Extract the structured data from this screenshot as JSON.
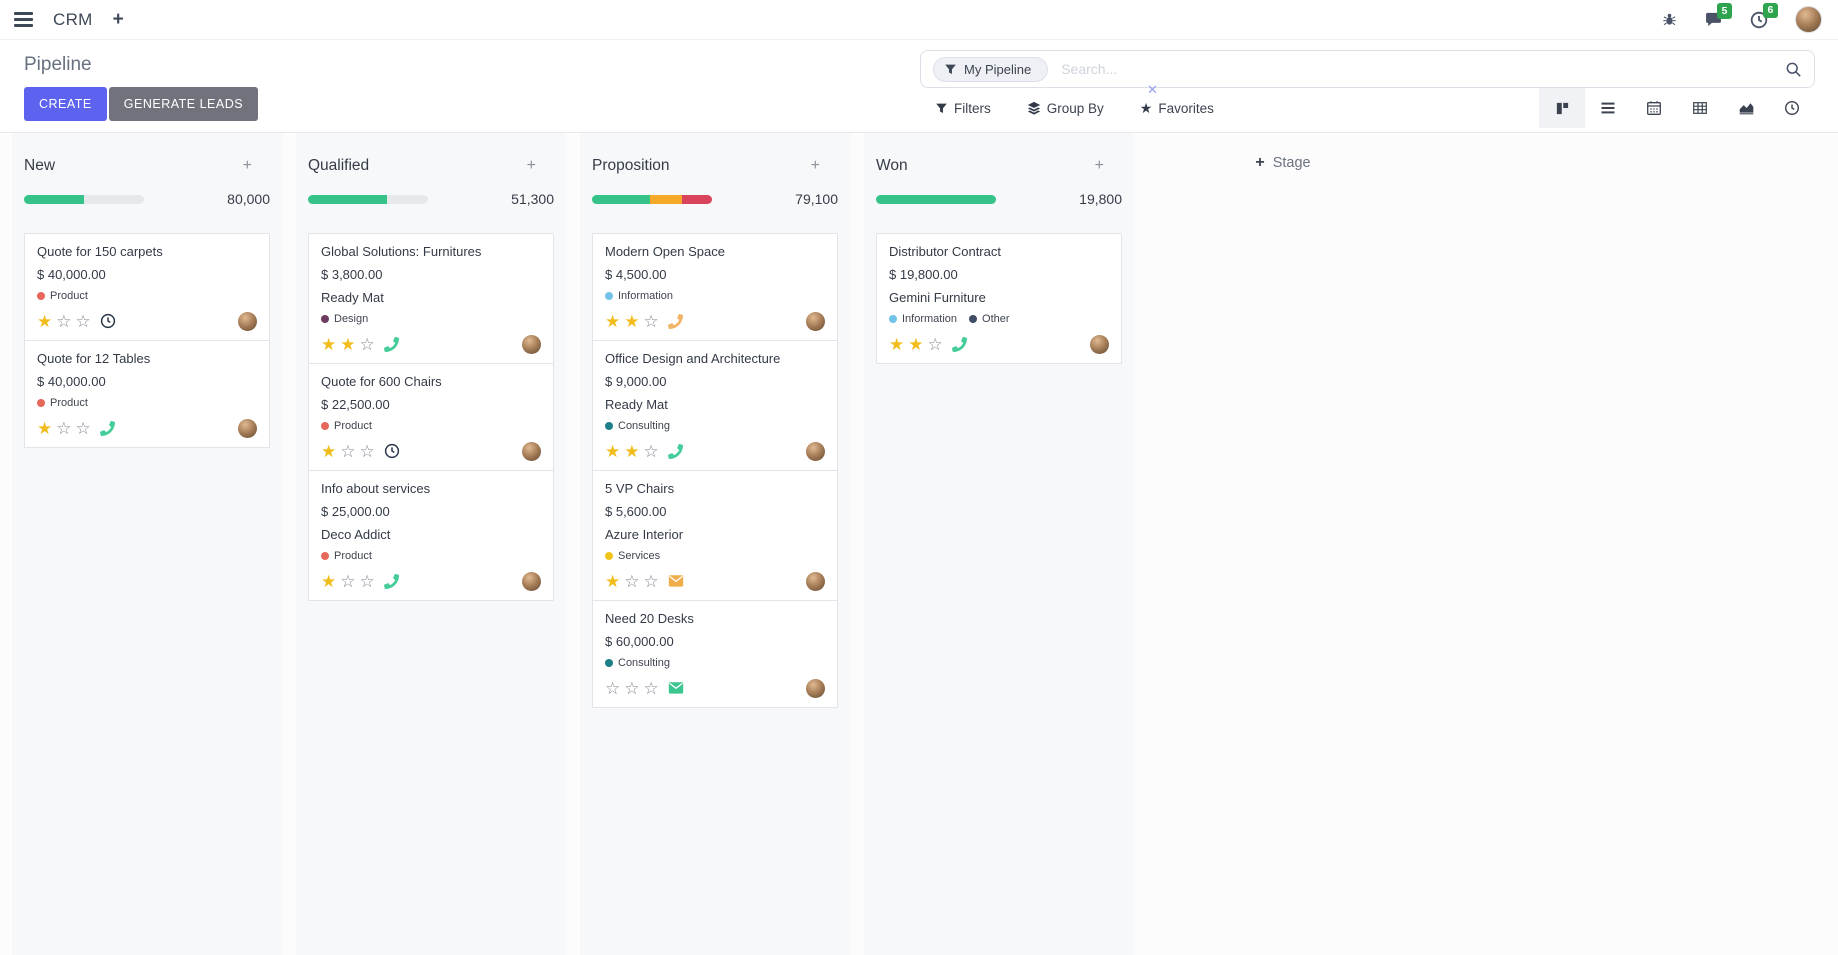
{
  "colors": {
    "accent": "#5d63ee",
    "muted_button": "#70737c",
    "success": "#35c38a",
    "warning": "#f6a829",
    "danger": "#d9435c"
  },
  "topbar": {
    "app_name": "CRM",
    "systray": {
      "bug_icon": "bug-icon",
      "messages_icon": "chat-icon",
      "messages_badge": "5",
      "activities_icon": "clock-icon",
      "activities_badge": "6",
      "user_icon": "avatar"
    }
  },
  "control_panel": {
    "title": "Pipeline",
    "create_label": "CREATE",
    "generate_leads_label": "GENERATE LEADS",
    "search": {
      "facet": "My Pipeline",
      "facet_icon": "funnel-icon",
      "placeholder": "Search...",
      "search_icon": "magnifier-icon"
    },
    "menus": {
      "filters_label": "Filters",
      "group_by_label": "Group By",
      "favorites_label": "Favorites"
    },
    "view_switcher": {
      "views": [
        "kanban",
        "list",
        "calendar",
        "pivot",
        "graph",
        "activity"
      ],
      "active": "kanban"
    }
  },
  "board": {
    "add_stage_label": "Stage",
    "columns": [
      {
        "name": "New",
        "total": "80,000",
        "progress": [
          {
            "color": "#35c38a",
            "pct": 50
          }
        ],
        "cards": [
          {
            "title": "Quote for 150 carpets",
            "amount": "$ 40,000.00",
            "tags": [
              {
                "label": "Product",
                "color": "#e7685a"
              }
            ],
            "stars": 1,
            "activity": {
              "icon": "clock-icon",
              "color": "#2b374a"
            }
          },
          {
            "title": "Quote for 12 Tables",
            "amount": "$ 40,000.00",
            "tags": [
              {
                "label": "Product",
                "color": "#e7685a"
              }
            ],
            "stars": 1,
            "activity": {
              "icon": "phone-icon",
              "color": "#44cd99"
            }
          }
        ]
      },
      {
        "name": "Qualified",
        "total": "51,300",
        "progress": [
          {
            "color": "#35c38a",
            "pct": 66
          }
        ],
        "cards": [
          {
            "title": "Global Solutions: Furnitures",
            "amount": "$ 3,800.00",
            "partner": "Ready Mat",
            "tags": [
              {
                "label": "Design",
                "color": "#6e3c60"
              }
            ],
            "stars": 2,
            "activity": {
              "icon": "phone-icon",
              "color": "#44cd99"
            }
          },
          {
            "title": "Quote for 600 Chairs",
            "amount": "$ 22,500.00",
            "tags": [
              {
                "label": "Product",
                "color": "#e7685a"
              }
            ],
            "stars": 1,
            "activity": {
              "icon": "clock-icon",
              "color": "#2b374a"
            }
          },
          {
            "title": "Info about services",
            "amount": "$ 25,000.00",
            "partner": "Deco Addict",
            "tags": [
              {
                "label": "Product",
                "color": "#e7685a"
              }
            ],
            "stars": 1,
            "activity": {
              "icon": "phone-icon",
              "color": "#44cd99"
            }
          }
        ]
      },
      {
        "name": "Proposition",
        "total": "79,100",
        "progress": [
          {
            "color": "#35c38a",
            "pct": 48
          },
          {
            "color": "#f6a829",
            "pct": 27
          },
          {
            "color": "#d9435c",
            "pct": 25
          }
        ],
        "cards": [
          {
            "title": "Modern Open Space",
            "amount": "$ 4,500.00",
            "tags": [
              {
                "label": "Information",
                "color": "#72c2e9"
              }
            ],
            "stars": 2,
            "activity": {
              "icon": "phone-icon",
              "color": "#f2b468"
            }
          },
          {
            "title": "Office Design and Architecture",
            "amount": "$ 9,000.00",
            "partner": "Ready Mat",
            "tags": [
              {
                "label": "Consulting",
                "color": "#1d7f89"
              }
            ],
            "stars": 2,
            "activity": {
              "icon": "phone-icon",
              "color": "#44cd99"
            }
          },
          {
            "title": "5 VP Chairs",
            "amount": "$ 5,600.00",
            "partner": "Azure Interior",
            "tags": [
              {
                "label": "Services",
                "color": "#efc319"
              }
            ],
            "stars": 1,
            "activity": {
              "icon": "envelope-icon",
              "color": "#eead49"
            }
          },
          {
            "title": "Need 20 Desks",
            "amount": "$ 60,000.00",
            "tags": [
              {
                "label": "Consulting",
                "color": "#1d7f89"
              }
            ],
            "stars": 0,
            "activity": {
              "icon": "envelope-icon",
              "color": "#3bc690"
            }
          }
        ]
      },
      {
        "name": "Won",
        "total": "19,800",
        "progress": [
          {
            "color": "#35c38a",
            "pct": 100
          }
        ],
        "cards": [
          {
            "title": "Distributor Contract",
            "amount": "$ 19,800.00",
            "partner": "Gemini Furniture",
            "tags": [
              {
                "label": "Information",
                "color": "#72c2e9"
              },
              {
                "label": "Other",
                "color": "#3f4c63"
              }
            ],
            "stars": 2,
            "activity": {
              "icon": "phone-icon",
              "color": "#44cd99"
            }
          }
        ]
      }
    ]
  }
}
